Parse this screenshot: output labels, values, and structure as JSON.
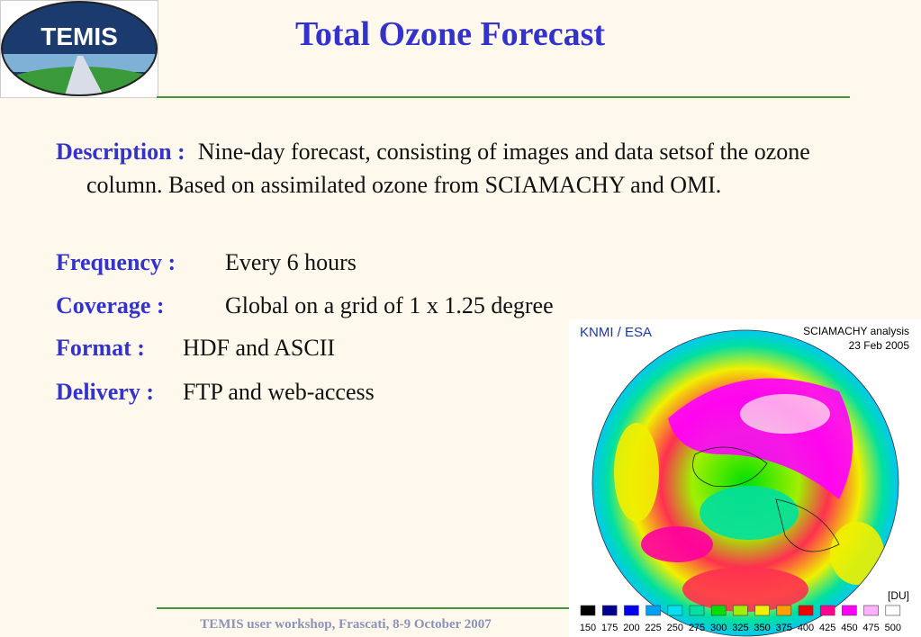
{
  "logo": {
    "text": "TEMIS"
  },
  "title": "Total Ozone Forecast",
  "items": [
    {
      "label": "Description :",
      "text": "Nine-day forecast, consisting of images and data setsof the ozone column. Based on assimilated ozone from SCIAMACHY and OMI."
    },
    {
      "label": "Frequency :",
      "text": "Every 6 hours"
    },
    {
      "label": "Coverage :",
      "text": "Global on a grid of 1 x 1.25 degree"
    },
    {
      "label": "Format :",
      "text": "HDF and ASCII"
    },
    {
      "label": "Delivery :",
      "text": "FTP and web-access"
    }
  ],
  "figure": {
    "source": "KNMI / ESA",
    "caption": "SCIAMACHY analysis",
    "date": "23 Feb 2005",
    "unit": "[DU]",
    "scale": [
      {
        "value": 150,
        "color": "#000000"
      },
      {
        "value": 175,
        "color": "#000090"
      },
      {
        "value": 200,
        "color": "#0000f0"
      },
      {
        "value": 225,
        "color": "#00a0f0"
      },
      {
        "value": 250,
        "color": "#00e0f0"
      },
      {
        "value": 275,
        "color": "#00e0a0"
      },
      {
        "value": 300,
        "color": "#00e000"
      },
      {
        "value": 325,
        "color": "#a0f000"
      },
      {
        "value": 350,
        "color": "#f0f000"
      },
      {
        "value": 375,
        "color": "#ffa000"
      },
      {
        "value": 400,
        "color": "#f00000"
      },
      {
        "value": 425,
        "color": "#ff0090"
      },
      {
        "value": 450,
        "color": "#ff00ff"
      },
      {
        "value": 475,
        "color": "#ffb0ff"
      },
      {
        "value": 500,
        "color": "#ffffff"
      }
    ]
  },
  "footer": "TEMIS user workshop, Frascati, 8-9 October 2007"
}
